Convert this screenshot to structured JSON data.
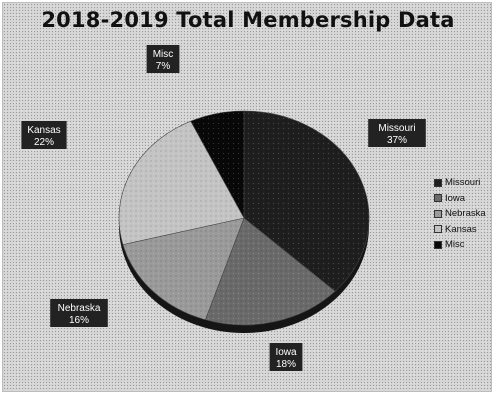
{
  "chart_data": {
    "type": "pie",
    "title": "2018-2019 Total Membership Data",
    "categories": [
      "Missouri",
      "Iowa",
      "Nebraska",
      "Kansas",
      "Misc"
    ],
    "values": [
      37,
      18,
      16,
      22,
      7
    ],
    "value_labels": [
      "37%",
      "18%",
      "16%",
      "22%",
      "7%"
    ],
    "colors": [
      "#1e1e1e",
      "#6a6a6a",
      "#9a9a9a",
      "#c4c4c4",
      "#080808"
    ],
    "legend_position": "right",
    "three_d": true
  }
}
